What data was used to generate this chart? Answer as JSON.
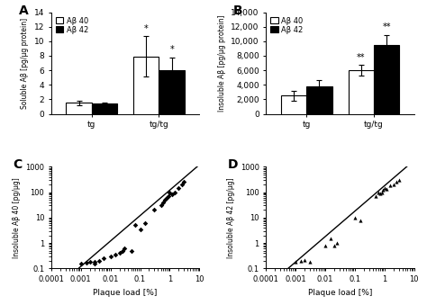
{
  "panel_A": {
    "label": "A",
    "groups": [
      "tg",
      "tg/tg"
    ],
    "ab40_means": [
      1.5,
      7.9
    ],
    "ab40_errors": [
      0.3,
      2.8
    ],
    "ab42_means": [
      1.4,
      6.0
    ],
    "ab42_errors": [
      0.2,
      1.8
    ],
    "ylabel": "Soluble Aβ [pg/μg protein]",
    "ylim": [
      0,
      14
    ],
    "yticks": [
      0,
      2,
      4,
      6,
      8,
      10,
      12,
      14
    ],
    "significance_ab40": [
      "",
      "*"
    ],
    "significance_ab42": [
      "",
      "*"
    ]
  },
  "panel_B": {
    "label": "B",
    "groups": [
      "tg",
      "tg/tg"
    ],
    "ab40_means": [
      2500,
      6000
    ],
    "ab40_errors": [
      700,
      700
    ],
    "ab42_means": [
      3800,
      9500
    ],
    "ab42_errors": [
      900,
      1400
    ],
    "ylabel": "Insoluble Aβ [pg/μg protein]",
    "ylim": [
      0,
      14000
    ],
    "yticks": [
      0,
      2000,
      4000,
      6000,
      8000,
      10000,
      12000,
      14000
    ],
    "significance_ab40": [
      "",
      "**"
    ],
    "significance_ab42": [
      "",
      "**"
    ]
  },
  "panel_C": {
    "label": "C",
    "xlabel": "Plaque load [%]",
    "ylabel": "Insoluble Aβ 40 [pg/μg]",
    "scatter_x": [
      0.001,
      0.0015,
      0.002,
      0.003,
      0.003,
      0.004,
      0.006,
      0.01,
      0.015,
      0.02,
      0.025,
      0.03,
      0.05,
      0.07,
      0.1,
      0.15,
      0.3,
      0.5,
      0.6,
      0.7,
      0.8,
      0.9,
      1.0,
      1.2,
      1.5,
      2.0,
      2.5,
      3.0
    ],
    "scatter_y": [
      0.15,
      0.17,
      0.18,
      0.16,
      0.18,
      0.2,
      0.25,
      0.3,
      0.35,
      0.4,
      0.5,
      0.6,
      0.5,
      5.0,
      3.5,
      6.0,
      20.0,
      30.0,
      40.0,
      50.0,
      60.0,
      70.0,
      100.0,
      80.0,
      100.0,
      150.0,
      200.0,
      250.0
    ],
    "fit_x": [
      0.0001,
      10
    ],
    "fit_y": [
      0.012,
      1200
    ],
    "xlim": [
      0.0001,
      10
    ],
    "ylim": [
      0.1,
      1000
    ]
  },
  "panel_D": {
    "label": "D",
    "xlabel": "Plaque load [%]",
    "ylabel": "Insoluble Aβ 42 [pg/μg]",
    "scatter_x": [
      0.001,
      0.0015,
      0.002,
      0.003,
      0.01,
      0.015,
      0.02,
      0.025,
      0.1,
      0.15,
      0.5,
      0.6,
      0.7,
      0.8,
      0.9,
      1.0,
      1.2,
      1.5,
      2.0,
      2.5,
      3.0
    ],
    "scatter_y": [
      0.18,
      0.2,
      0.22,
      0.18,
      0.8,
      1.5,
      0.8,
      1.0,
      10.0,
      8.0,
      70.0,
      100.0,
      90.0,
      100.0,
      120.0,
      150.0,
      130.0,
      180.0,
      200.0,
      250.0,
      300.0
    ],
    "fit_x": [
      0.0001,
      10
    ],
    "fit_y": [
      0.018,
      1800
    ],
    "xlim": [
      0.0001,
      10
    ],
    "ylim": [
      0.1,
      1000
    ]
  }
}
